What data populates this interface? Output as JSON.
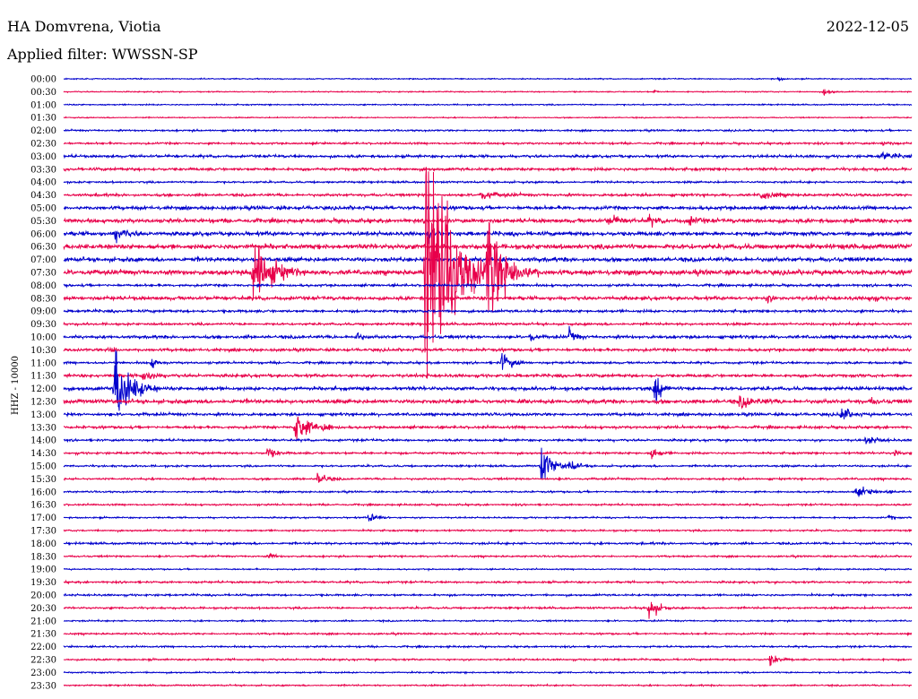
{
  "header": {
    "station": "HA Domvrena, Viotia",
    "date": "2022-12-05",
    "filter": "Applied filter: WWSSN-SP",
    "channel": "HHZ - 10000"
  },
  "chart_data": {
    "type": "helicorder",
    "title": "HA Domvrena, Viotia",
    "date": "2022-12-05",
    "filter": "WWSSN-SP",
    "ylabel": "HHZ - 10000",
    "rows": [
      "00:00",
      "00:30",
      "01:00",
      "01:30",
      "02:00",
      "02:30",
      "03:00",
      "03:30",
      "04:00",
      "04:30",
      "05:00",
      "05:30",
      "06:00",
      "06:30",
      "07:00",
      "07:30",
      "08:00",
      "08:30",
      "09:00",
      "09:30",
      "10:00",
      "10:30",
      "11:00",
      "11:30",
      "12:00",
      "12:30",
      "13:00",
      "13:30",
      "14:00",
      "14:30",
      "15:00",
      "15:30",
      "16:00",
      "16:30",
      "17:00",
      "17:30",
      "18:00",
      "18:30",
      "19:00",
      "19:30",
      "20:00",
      "20:30",
      "21:00",
      "21:30",
      "22:00",
      "22:30",
      "23:00",
      "23:30"
    ],
    "row_minutes": 30,
    "trace_colors": [
      "#0000cc",
      "#e8004a"
    ],
    "noise": [
      0.5,
      0.5,
      0.6,
      0.5,
      0.8,
      0.9,
      1.2,
      1.3,
      0.9,
      1.2,
      1.6,
      1.8,
      1.8,
      2.2,
      1.9,
      2.2,
      1.1,
      1.6,
      1.2,
      1.1,
      1.4,
      1.3,
      1.0,
      1.4,
      1.6,
      1.8,
      1.3,
      1.2,
      1.0,
      1.0,
      0.9,
      0.9,
      0.8,
      0.8,
      0.7,
      0.8,
      1.0,
      0.8,
      0.6,
      0.9,
      0.9,
      0.9,
      0.7,
      0.8,
      0.8,
      0.8,
      0.7,
      0.7
    ],
    "events": [
      {
        "row": 0,
        "minute": 25.3,
        "amp": 2,
        "dur": 0.4
      },
      {
        "row": 1,
        "minute": 20.9,
        "amp": 2,
        "dur": 0.3
      },
      {
        "row": 1,
        "minute": 26.9,
        "amp": 3,
        "dur": 0.8
      },
      {
        "row": 5,
        "minute": 29.0,
        "amp": 3,
        "dur": 0.6
      },
      {
        "row": 6,
        "minute": 28.9,
        "amp": 5,
        "dur": 1.2
      },
      {
        "row": 9,
        "minute": 14.7,
        "amp": 5,
        "dur": 1.6
      },
      {
        "row": 9,
        "minute": 24.7,
        "amp": 5,
        "dur": 1.2
      },
      {
        "row": 11,
        "minute": 19.3,
        "amp": 6,
        "dur": 1.0
      },
      {
        "row": 11,
        "minute": 20.7,
        "amp": 5,
        "dur": 0.8
      },
      {
        "row": 11,
        "minute": 22.1,
        "amp": 5,
        "dur": 0.8
      },
      {
        "row": 12,
        "minute": 1.8,
        "amp": 8,
        "dur": 1.0
      },
      {
        "row": 12,
        "minute": 12.9,
        "amp": 6,
        "dur": 0.5
      },
      {
        "row": 15,
        "minute": 6.7,
        "amp": 45,
        "dur": 1.6
      },
      {
        "row": 15,
        "minute": 12.8,
        "amp": 150,
        "dur": 2.5
      },
      {
        "row": 15,
        "minute": 15.0,
        "amp": 60,
        "dur": 1.8
      },
      {
        "row": 17,
        "minute": 24.9,
        "amp": 5,
        "dur": 0.5
      },
      {
        "row": 17,
        "minute": 28.5,
        "amp": 4,
        "dur": 0.5
      },
      {
        "row": 20,
        "minute": 10.3,
        "amp": 7,
        "dur": 0.5
      },
      {
        "row": 20,
        "minute": 16.5,
        "amp": 6,
        "dur": 0.4
      },
      {
        "row": 20,
        "minute": 17.9,
        "amp": 8,
        "dur": 0.6
      },
      {
        "row": 21,
        "minute": 1.6,
        "amp": 5,
        "dur": 0.6
      },
      {
        "row": 22,
        "minute": 3.1,
        "amp": 6,
        "dur": 0.5
      },
      {
        "row": 22,
        "minute": 15.5,
        "amp": 10,
        "dur": 1.0
      },
      {
        "row": 23,
        "minute": 2.8,
        "amp": 6,
        "dur": 1.0
      },
      {
        "row": 24,
        "minute": 1.8,
        "amp": 45,
        "dur": 1.5
      },
      {
        "row": 24,
        "minute": 20.9,
        "amp": 25,
        "dur": 0.6
      },
      {
        "row": 25,
        "minute": 16.1,
        "amp": 3,
        "dur": 0.4
      },
      {
        "row": 25,
        "minute": 23.9,
        "amp": 6,
        "dur": 1.6
      },
      {
        "row": 25,
        "minute": 28.6,
        "amp": 3,
        "dur": 0.5
      },
      {
        "row": 26,
        "minute": 27.5,
        "amp": 10,
        "dur": 0.8
      },
      {
        "row": 27,
        "minute": 8.2,
        "amp": 20,
        "dur": 1.2
      },
      {
        "row": 27,
        "minute": 9.2,
        "amp": 6,
        "dur": 0.6
      },
      {
        "row": 28,
        "minute": 28.4,
        "amp": 5,
        "dur": 1.0
      },
      {
        "row": 29,
        "minute": 7.2,
        "amp": 6,
        "dur": 0.8
      },
      {
        "row": 29,
        "minute": 20.8,
        "amp": 6,
        "dur": 0.7
      },
      {
        "row": 29,
        "minute": 29.4,
        "amp": 4,
        "dur": 0.4
      },
      {
        "row": 30,
        "minute": 16.9,
        "amp": 22,
        "dur": 1.0
      },
      {
        "row": 30,
        "minute": 17.9,
        "amp": 6,
        "dur": 0.8
      },
      {
        "row": 31,
        "minute": 9.0,
        "amp": 8,
        "dur": 0.8
      },
      {
        "row": 32,
        "minute": 28.0,
        "amp": 5,
        "dur": 1.6
      },
      {
        "row": 34,
        "minute": 10.8,
        "amp": 6,
        "dur": 0.8
      },
      {
        "row": 34,
        "minute": 29.2,
        "amp": 3,
        "dur": 0.4
      },
      {
        "row": 37,
        "minute": 7.3,
        "amp": 3,
        "dur": 0.5
      },
      {
        "row": 41,
        "minute": 20.7,
        "amp": 15,
        "dur": 0.8
      },
      {
        "row": 45,
        "minute": 25.0,
        "amp": 6,
        "dur": 0.8
      }
    ]
  }
}
